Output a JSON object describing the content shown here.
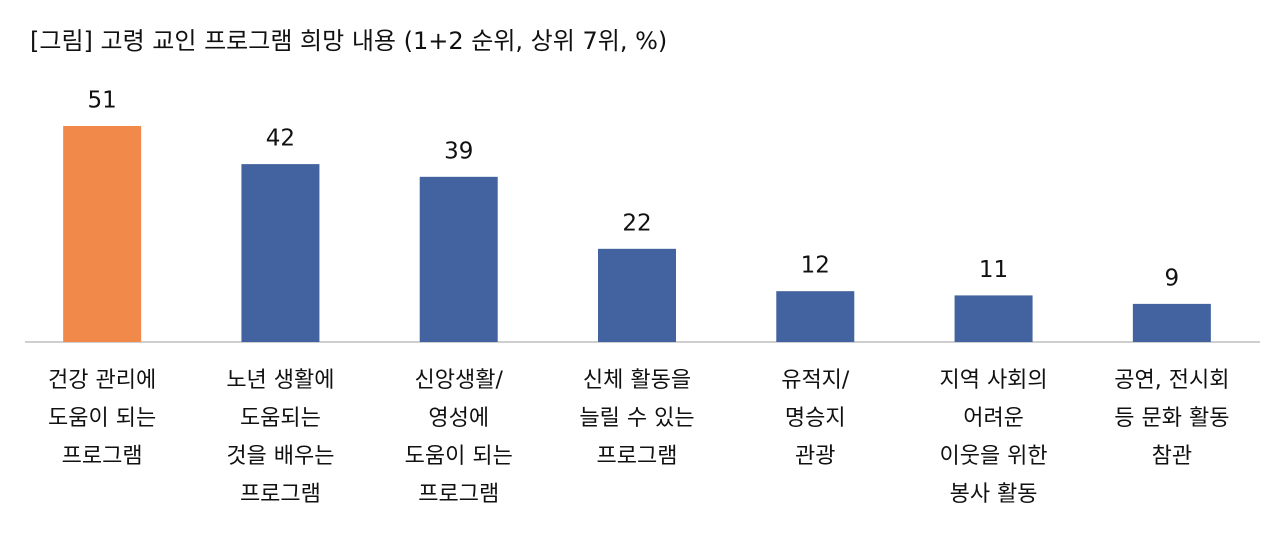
{
  "chart_data": {
    "type": "bar",
    "title": "[그림] 고령 교인 프로그램 희망 내용 (1+2 순위, 상위 7위, %)",
    "categories": [
      [
        "건강 관리에",
        "도움이 되는",
        "프로그램"
      ],
      [
        "노년 생활에",
        "도움되는",
        "것을 배우는",
        "프로그램"
      ],
      [
        "신앙생활/",
        "영성에",
        "도움이 되는",
        "프로그램"
      ],
      [
        "신체 활동을",
        "늘릴 수 있는",
        "프로그램"
      ],
      [
        "유적지/",
        "명승지",
        "관광"
      ],
      [
        "지역 사회의",
        "어려운",
        "이웃을 위한",
        "봉사 활동"
      ],
      [
        "공연, 전시회",
        "등 문화 활동",
        "참관"
      ]
    ],
    "values": [
      51,
      42,
      39,
      22,
      12,
      11,
      9
    ],
    "colors": [
      "#f0894a",
      "#4363a0",
      "#4363a0",
      "#4363a0",
      "#4363a0",
      "#4363a0",
      "#4363a0"
    ]
  }
}
